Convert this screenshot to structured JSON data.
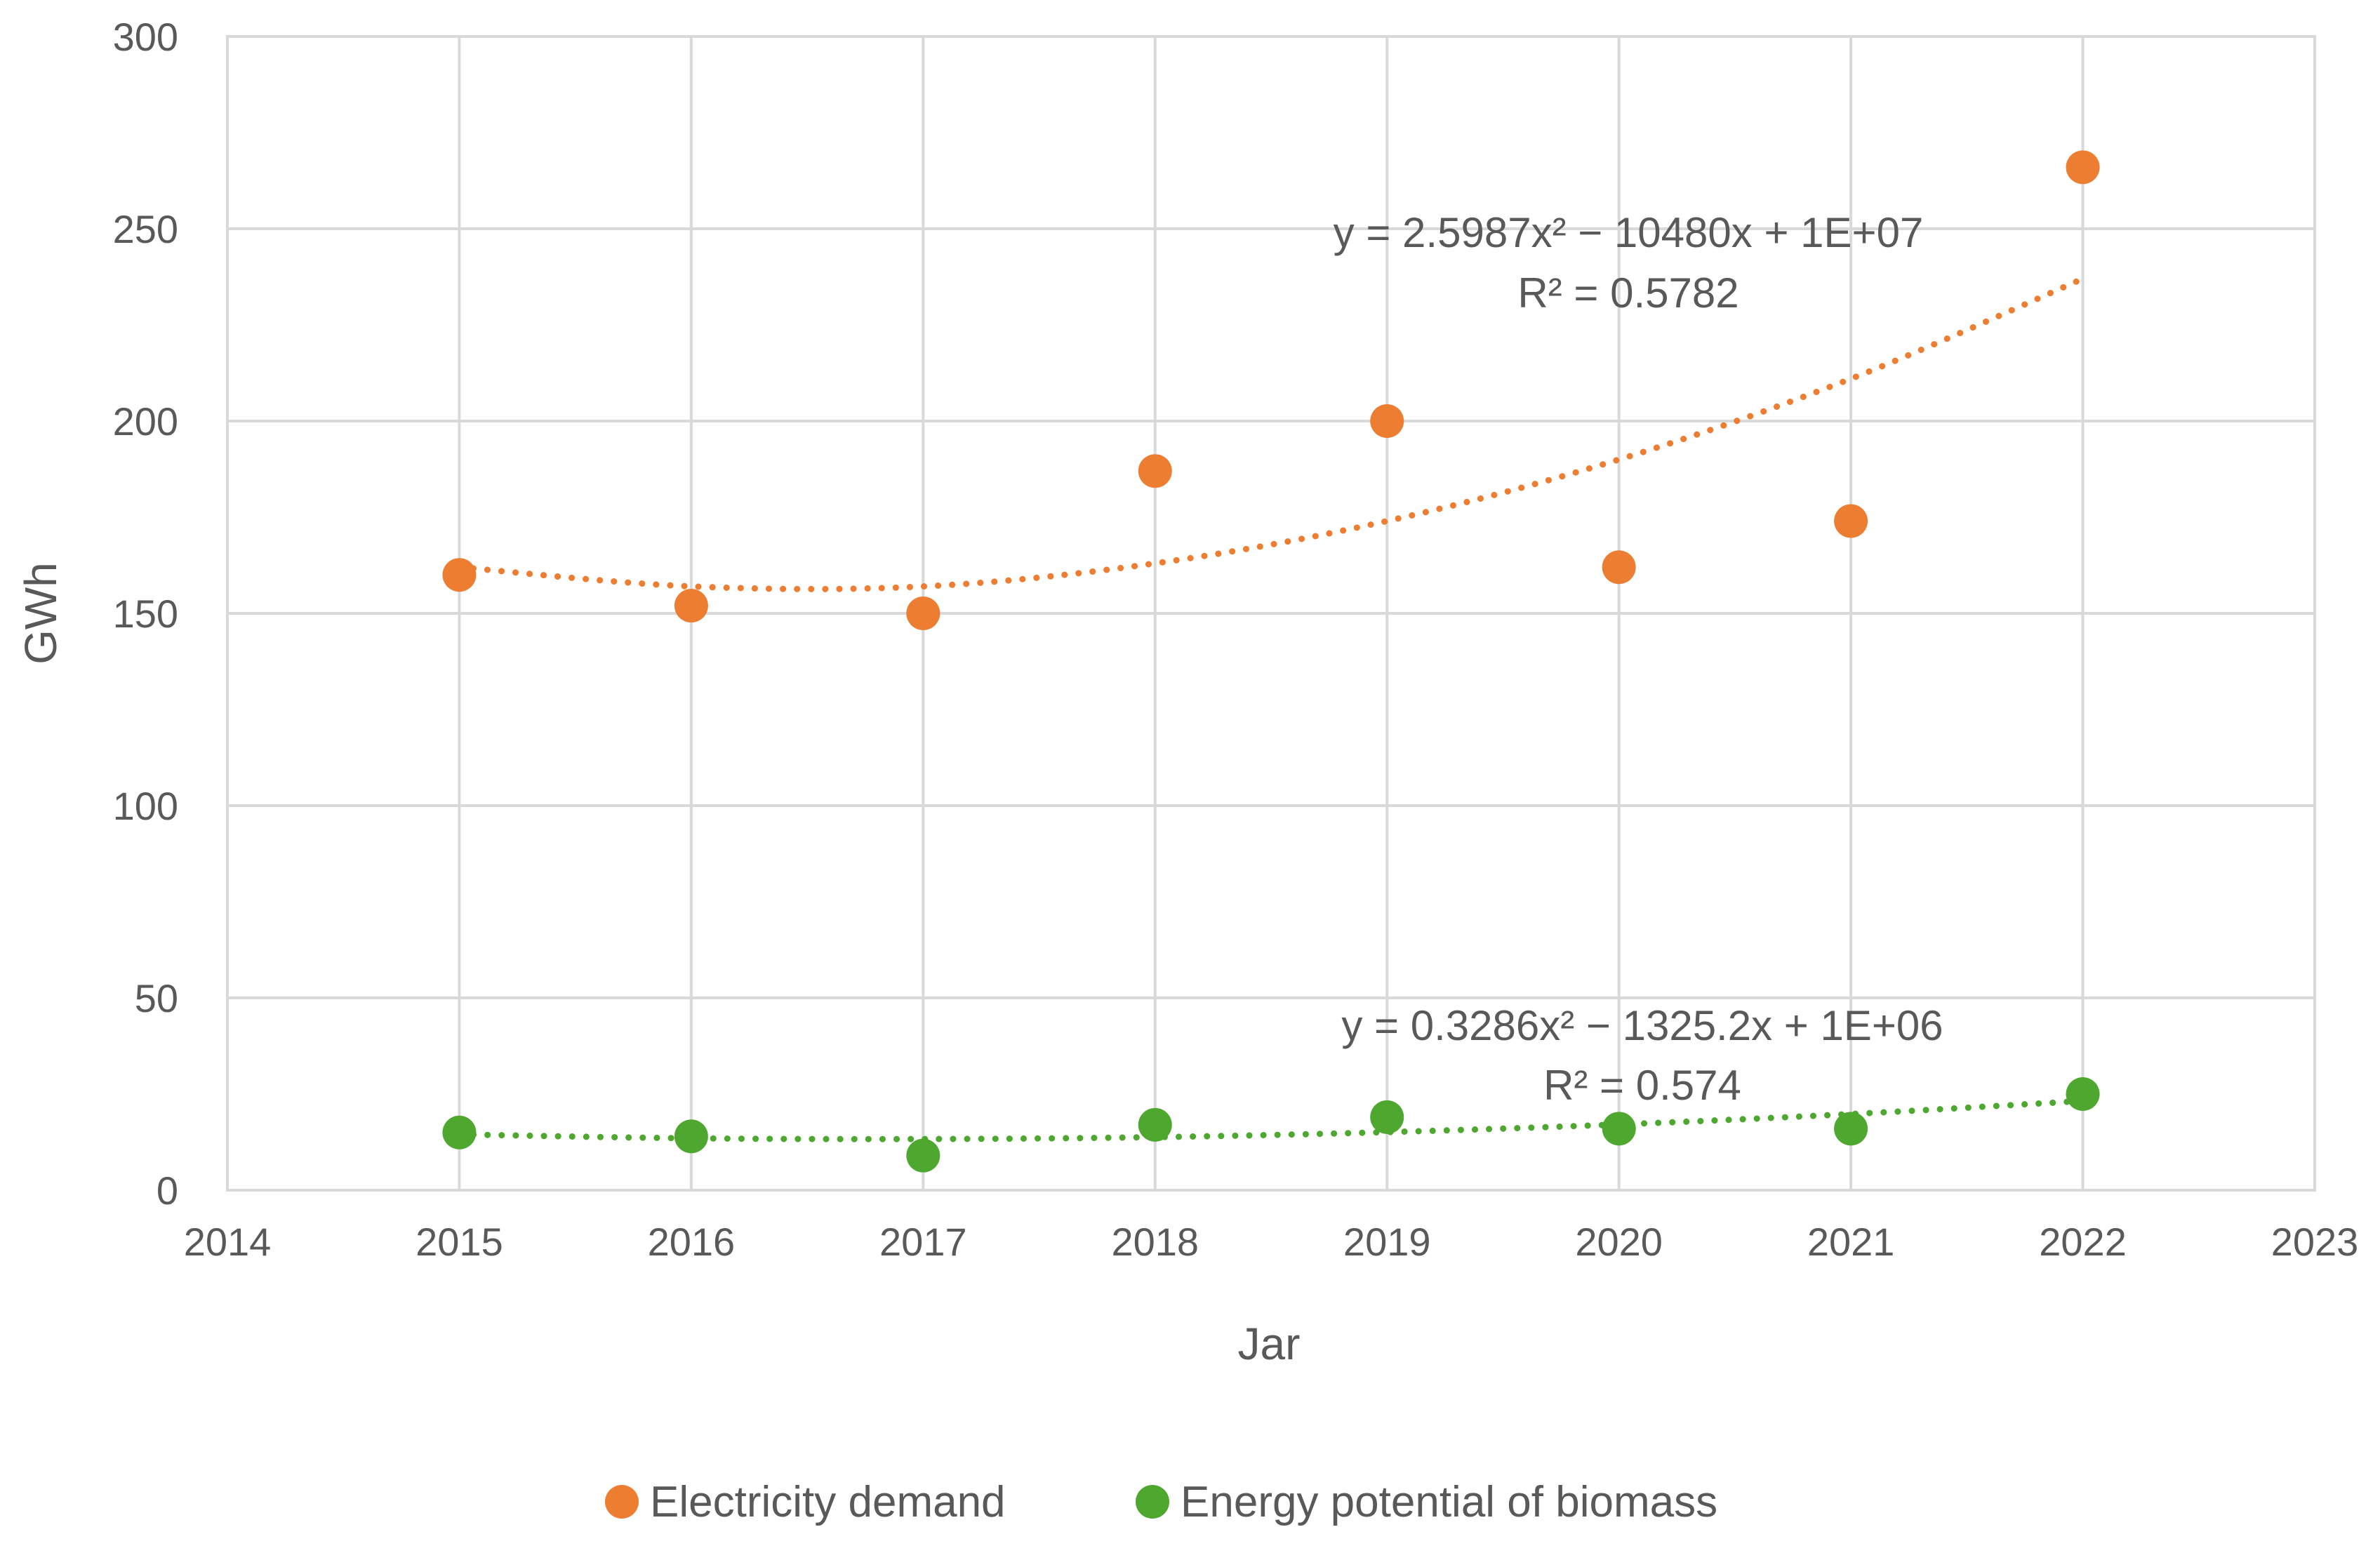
{
  "chart_data": {
    "type": "scatter",
    "title": "",
    "xlabel": "Jar",
    "ylabel": "GWh",
    "xlim": [
      2014,
      2023
    ],
    "ylim": [
      0,
      300
    ],
    "xticks": [
      2014,
      2015,
      2016,
      2017,
      2018,
      2019,
      2020,
      2021,
      2022,
      2023
    ],
    "yticks": [
      0,
      50,
      100,
      150,
      200,
      250,
      300
    ],
    "xtick_labels": [
      "2014",
      "2015",
      "2016",
      "2017",
      "2018",
      "2019",
      "2020",
      "2021",
      "2022",
      "2023"
    ],
    "ytick_labels": [
      "0",
      "50",
      "100",
      "150",
      "200",
      "250",
      "300"
    ],
    "grid": true,
    "legend_position": "bottom",
    "series": [
      {
        "name": "Electricity demand",
        "color": "#ED7D31",
        "x": [
          2015,
          2016,
          2017,
          2018,
          2019,
          2020,
          2021,
          2022
        ],
        "values": [
          160,
          152,
          150,
          187,
          200,
          162,
          174,
          266
        ],
        "trendline": {
          "type": "poly2",
          "x_range": [
            2015,
            2022
          ],
          "points": [
            [
              2015,
              162
            ],
            [
              2016,
              157
            ],
            [
              2017,
              157
            ],
            [
              2018,
              163
            ],
            [
              2019,
              174
            ],
            [
              2020,
              190
            ],
            [
              2021,
              211
            ],
            [
              2022,
              237
            ]
          ],
          "equation": "y = 2.5987x² − 10480x + 1E+07",
          "r2": "R² = 0.5782"
        }
      },
      {
        "name": "Energy potential of biomass",
        "color": "#4EA72E",
        "x": [
          2015,
          2016,
          2017,
          2018,
          2019,
          2020,
          2021,
          2022
        ],
        "values": [
          15,
          14,
          9,
          17,
          19,
          16,
          16,
          25
        ],
        "trendline": {
          "type": "poly2",
          "x_range": [
            2015,
            2022
          ],
          "points": [
            [
              2015,
              14.5
            ],
            [
              2016,
              13.5
            ],
            [
              2017,
              13.3
            ],
            [
              2018,
              13.8
            ],
            [
              2019,
              15.1
            ],
            [
              2020,
              17.1
            ],
            [
              2021,
              19.8
            ],
            [
              2022,
              23.2
            ]
          ],
          "equation": "y = 0.3286x² − 1325.2x + 1E+06",
          "r2": "R² = 0.574"
        }
      }
    ]
  }
}
